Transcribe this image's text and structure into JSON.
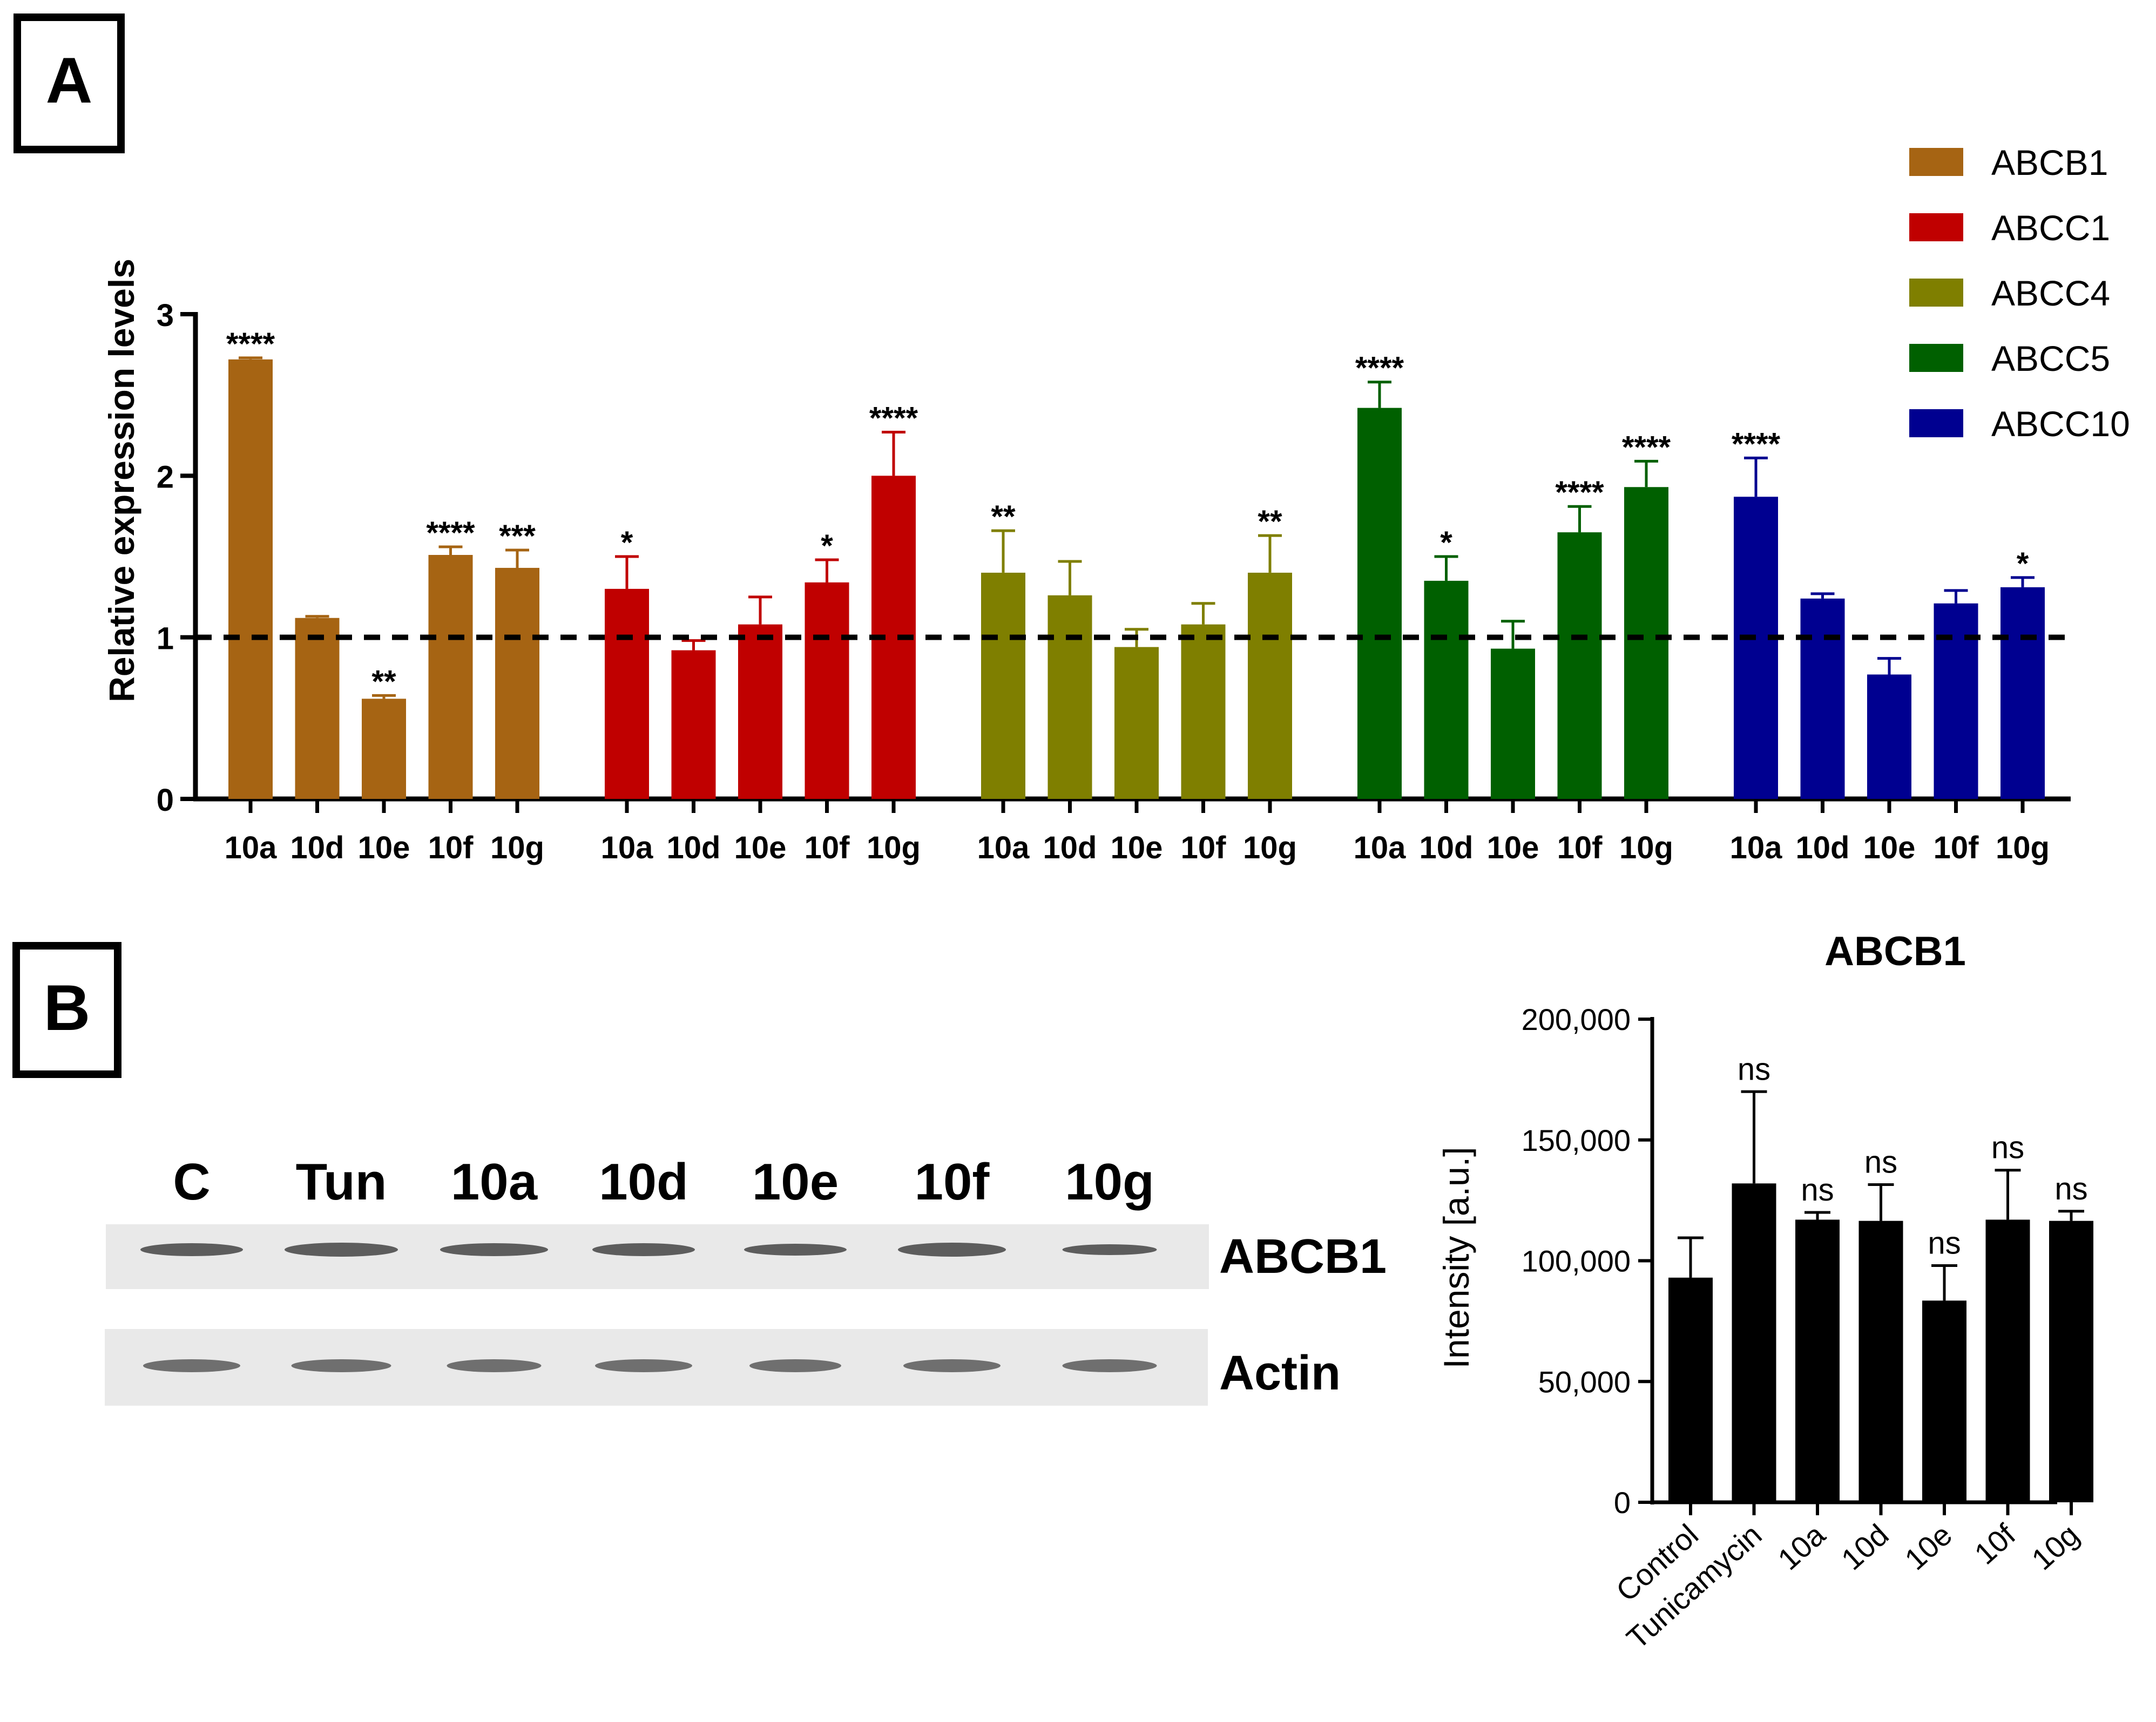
{
  "panels": {
    "a_label": "A",
    "b_label": "B"
  },
  "colors": {
    "ABCB1": "#a66413",
    "ABCC1": "#c00000",
    "ABCC4": "#7f7f00",
    "ABCC5": "#006000",
    "ABCC10": "#000090",
    "black": "#000000",
    "blot_bg": "#e9e9e9",
    "band": "#3a3a3a"
  },
  "chart_data": [
    {
      "id": "panel-a",
      "type": "bar",
      "title": "",
      "xlabel": "",
      "ylabel": "Relative expression levels",
      "ylim": [
        0,
        3
      ],
      "yticks": [
        "0",
        "1",
        "2",
        "3"
      ],
      "reference_line": 1,
      "categories": [
        "10a",
        "10d",
        "10e",
        "10f",
        "10g"
      ],
      "legend_position": "top-right",
      "series": [
        {
          "name": "ABCB1",
          "values": [
            2.72,
            1.12,
            0.62,
            1.51,
            1.43
          ],
          "errors": [
            0.01,
            0.01,
            0.02,
            0.05,
            0.11
          ],
          "significance": [
            "****",
            "",
            "**",
            "****",
            "***"
          ]
        },
        {
          "name": "ABCC1",
          "values": [
            1.3,
            0.92,
            1.08,
            1.34,
            2.0
          ],
          "errors": [
            0.2,
            0.06,
            0.17,
            0.14,
            0.27
          ],
          "significance": [
            "*",
            "",
            "",
            "*",
            "****"
          ]
        },
        {
          "name": "ABCC4",
          "values": [
            1.4,
            1.26,
            0.94,
            1.08,
            1.4
          ],
          "errors": [
            0.26,
            0.21,
            0.11,
            0.13,
            0.23
          ],
          "significance": [
            "**",
            "",
            "",
            "",
            "**"
          ]
        },
        {
          "name": "ABCC5",
          "values": [
            2.42,
            1.35,
            0.93,
            1.65,
            1.93
          ],
          "errors": [
            0.16,
            0.15,
            0.17,
            0.16,
            0.16
          ],
          "significance": [
            "****",
            "*",
            "",
            "****",
            "****"
          ]
        },
        {
          "name": "ABCC10",
          "values": [
            1.87,
            1.24,
            0.77,
            1.21,
            1.31
          ],
          "errors": [
            0.24,
            0.03,
            0.1,
            0.08,
            0.06
          ],
          "significance": [
            "****",
            "",
            "",
            "",
            "*"
          ]
        }
      ]
    },
    {
      "id": "panel-b",
      "type": "bar",
      "title": "ABCB1",
      "xlabel": "",
      "ylabel": "Intensity [a.u.]",
      "ylim": [
        0,
        200000
      ],
      "yticks": [
        "0",
        "50,000",
        "100,000",
        "150,000",
        "200,000"
      ],
      "categories": [
        "Control",
        "Tunicamycin",
        "10a",
        "10d",
        "10e",
        "10f",
        "10g"
      ],
      "values": [
        93000,
        132000,
        117000,
        116500,
        83500,
        117000,
        116500
      ],
      "errors": [
        16500,
        38000,
        3000,
        15000,
        14500,
        20500,
        4000
      ],
      "significance": [
        "",
        "ns",
        "ns",
        "ns",
        "ns",
        "ns",
        "ns"
      ]
    }
  ],
  "blot": {
    "lanes": [
      "C",
      "Tun",
      "10a",
      "10d",
      "10e",
      "10f",
      "10g"
    ],
    "rows": [
      "ABCB1",
      "Actin"
    ]
  }
}
